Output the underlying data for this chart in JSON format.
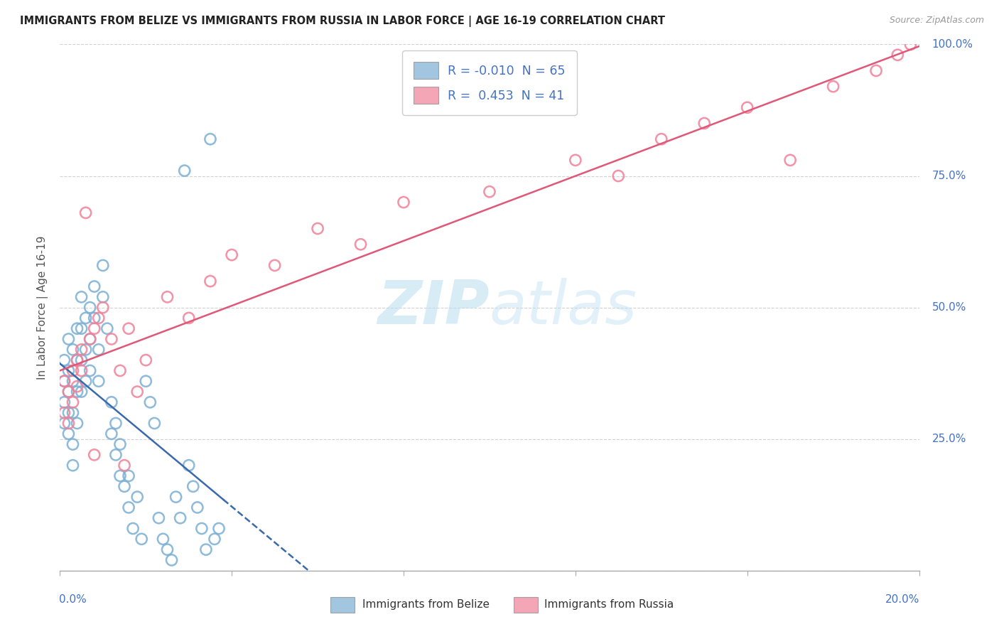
{
  "title": "IMMIGRANTS FROM BELIZE VS IMMIGRANTS FROM RUSSIA IN LABOR FORCE | AGE 16-19 CORRELATION CHART",
  "source": "Source: ZipAtlas.com",
  "belize_color": "#7bafd4",
  "russia_color": "#f08098",
  "belize_line_color": "#3a6aad",
  "russia_line_color": "#e05878",
  "R_belize": -0.01,
  "N_belize": 65,
  "R_russia": 0.453,
  "N_russia": 41,
  "xmin": 0.0,
  "xmax": 0.2,
  "ymin": 0.0,
  "ymax": 1.0,
  "watermark_color": "#c8e4f0",
  "watermark_zip": "ZIP",
  "watermark_atlas": "atlas",
  "legend_label_belize": "Immigrants from Belize",
  "legend_label_russia": "Immigrants from Russia",
  "axis_label_color": "#4472c4",
  "ylabel": "In Labor Force | Age 16-19",
  "belize_x": [
    0.001,
    0.001,
    0.001,
    0.001,
    0.002,
    0.002,
    0.002,
    0.002,
    0.002,
    0.003,
    0.003,
    0.003,
    0.003,
    0.003,
    0.004,
    0.004,
    0.004,
    0.004,
    0.005,
    0.005,
    0.005,
    0.005,
    0.006,
    0.006,
    0.006,
    0.007,
    0.007,
    0.007,
    0.008,
    0.008,
    0.009,
    0.009,
    0.01,
    0.01,
    0.011,
    0.012,
    0.012,
    0.013,
    0.013,
    0.014,
    0.014,
    0.015,
    0.016,
    0.016,
    0.017,
    0.018,
    0.019,
    0.02,
    0.021,
    0.022,
    0.023,
    0.024,
    0.025,
    0.026,
    0.027,
    0.028,
    0.029,
    0.03,
    0.031,
    0.032,
    0.033,
    0.034,
    0.035,
    0.036,
    0.037
  ],
  "belize_y": [
    0.36,
    0.4,
    0.32,
    0.28,
    0.44,
    0.38,
    0.3,
    0.34,
    0.26,
    0.42,
    0.36,
    0.3,
    0.24,
    0.2,
    0.46,
    0.4,
    0.34,
    0.28,
    0.52,
    0.46,
    0.4,
    0.34,
    0.48,
    0.42,
    0.36,
    0.5,
    0.44,
    0.38,
    0.54,
    0.48,
    0.42,
    0.36,
    0.58,
    0.52,
    0.46,
    0.26,
    0.32,
    0.22,
    0.28,
    0.18,
    0.24,
    0.16,
    0.12,
    0.18,
    0.08,
    0.14,
    0.06,
    0.36,
    0.32,
    0.28,
    0.1,
    0.06,
    0.04,
    0.02,
    0.14,
    0.1,
    0.76,
    0.2,
    0.16,
    0.12,
    0.08,
    0.04,
    0.82,
    0.06,
    0.08
  ],
  "russia_x": [
    0.001,
    0.001,
    0.002,
    0.002,
    0.003,
    0.003,
    0.004,
    0.004,
    0.005,
    0.005,
    0.006,
    0.007,
    0.008,
    0.009,
    0.01,
    0.012,
    0.014,
    0.016,
    0.018,
    0.02,
    0.025,
    0.03,
    0.035,
    0.04,
    0.05,
    0.06,
    0.07,
    0.08,
    0.1,
    0.12,
    0.13,
    0.14,
    0.15,
    0.16,
    0.17,
    0.18,
    0.19,
    0.195,
    0.198,
    0.015,
    0.008
  ],
  "russia_y": [
    0.3,
    0.36,
    0.28,
    0.34,
    0.32,
    0.38,
    0.4,
    0.35,
    0.42,
    0.38,
    0.68,
    0.44,
    0.46,
    0.48,
    0.5,
    0.44,
    0.38,
    0.46,
    0.34,
    0.4,
    0.52,
    0.48,
    0.55,
    0.6,
    0.58,
    0.65,
    0.62,
    0.7,
    0.72,
    0.78,
    0.75,
    0.82,
    0.85,
    0.88,
    0.78,
    0.92,
    0.95,
    0.98,
    1.0,
    0.2,
    0.22
  ]
}
